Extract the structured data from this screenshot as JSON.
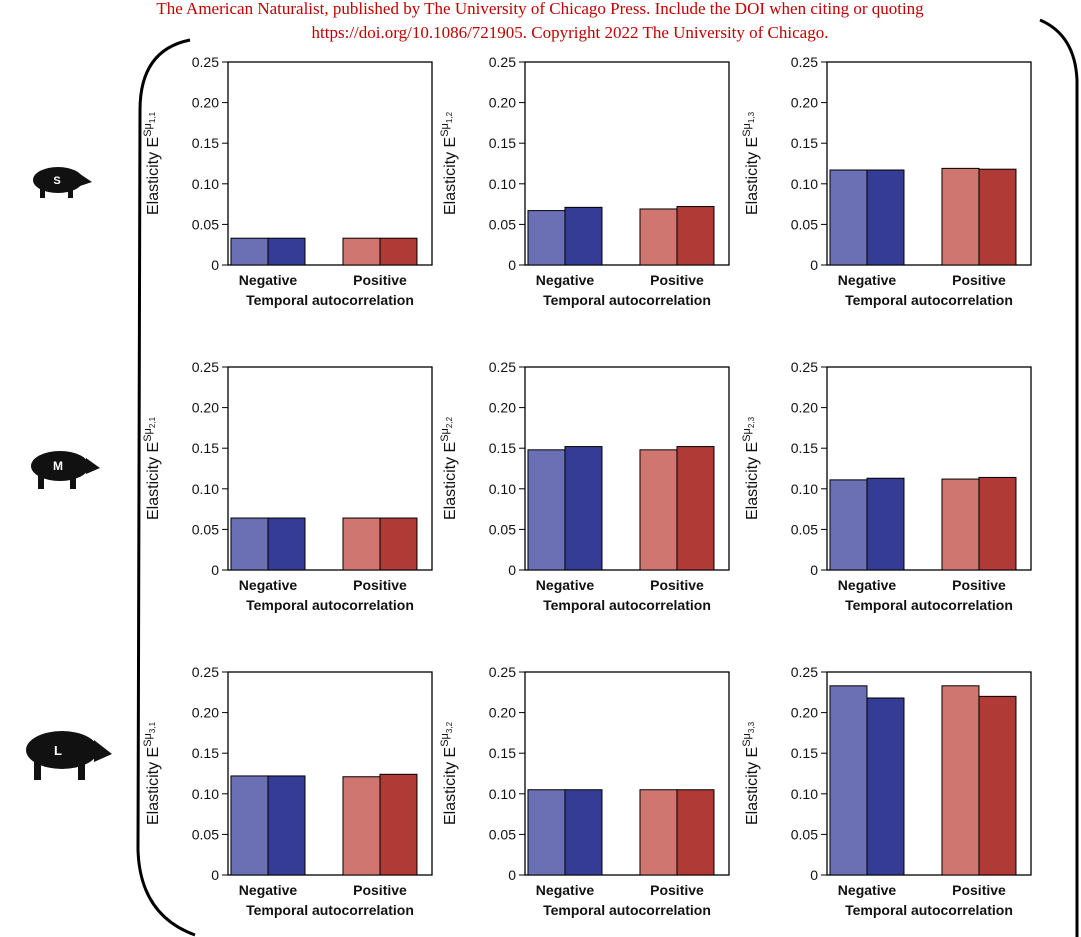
{
  "header": {
    "lines": [
      "The American Naturalist, published by The University of Chicago Press. Include the DOI when citing or quoting",
      "https://doi.org/10.1086/721905. Copyright 2022 The University of Chicago."
    ]
  },
  "row_labels": [
    "S",
    "M",
    "L"
  ],
  "chart_data": [
    {
      "type": "bar",
      "categories": [
        "Negative",
        "Positive"
      ],
      "xlabel": "Temporal autocorrelation",
      "ylabel": "Elasticity E",
      "ylabel_sup": "Sμ",
      "ylabel_sub": "1,1",
      "ylim": [
        0,
        0.25
      ],
      "yticks": [
        0,
        0.05,
        {
          "value": 0.1,
          "label": "0.10"
        },
        0.15,
        {
          "value": 0.2,
          "label": "0.20"
        },
        0.25
      ],
      "series": [
        {
          "color": [
            "#6b6fb3",
            "#cf7670"
          ],
          "values": [
            0.033,
            0.033
          ]
        },
        {
          "color": [
            "#343c96",
            "#b03a35"
          ],
          "values": [
            0.033,
            0.033
          ]
        }
      ]
    },
    {
      "type": "bar",
      "categories": [
        "Negative",
        "Positive"
      ],
      "xlabel": "Temporal autocorrelation",
      "ylabel": "Elasticity E",
      "ylabel_sup": "Sμ",
      "ylabel_sub": "1,2",
      "ylim": [
        0,
        0.25
      ],
      "yticks": [
        0,
        0.05,
        {
          "value": 0.1,
          "label": "0.10"
        },
        0.15,
        {
          "value": 0.2,
          "label": "0.20"
        },
        0.25
      ],
      "series": [
        {
          "color": [
            "#6b6fb3",
            "#cf7670"
          ],
          "values": [
            0.067,
            0.069
          ]
        },
        {
          "color": [
            "#343c96",
            "#b03a35"
          ],
          "values": [
            0.071,
            0.072
          ]
        }
      ]
    },
    {
      "type": "bar",
      "categories": [
        "Negative",
        "Positive"
      ],
      "xlabel": "Temporal autocorrelation",
      "ylabel": "Elasticity E",
      "ylabel_sup": "Sμ",
      "ylabel_sub": "1,3",
      "ylim": [
        0,
        0.25
      ],
      "yticks": [
        0,
        0.05,
        {
          "value": 0.1,
          "label": "0.10"
        },
        0.15,
        {
          "value": 0.2,
          "label": "0.20"
        },
        0.25
      ],
      "series": [
        {
          "color": [
            "#6b6fb3",
            "#cf7670"
          ],
          "values": [
            0.117,
            0.119
          ]
        },
        {
          "color": [
            "#343c96",
            "#b03a35"
          ],
          "values": [
            0.117,
            0.118
          ]
        }
      ]
    },
    {
      "type": "bar",
      "categories": [
        "Negative",
        "Positive"
      ],
      "xlabel": "Temporal autocorrelation",
      "ylabel": "Elasticity E",
      "ylabel_sup": "Sμ",
      "ylabel_sub": "2,1",
      "ylim": [
        0,
        0.25
      ],
      "yticks": [
        0,
        0.05,
        {
          "value": 0.1,
          "label": "0.10"
        },
        0.15,
        {
          "value": 0.2,
          "label": "0.20"
        },
        0.25
      ],
      "series": [
        {
          "color": [
            "#6b6fb3",
            "#cf7670"
          ],
          "values": [
            0.064,
            0.064
          ]
        },
        {
          "color": [
            "#343c96",
            "#b03a35"
          ],
          "values": [
            0.064,
            0.064
          ]
        }
      ]
    },
    {
      "type": "bar",
      "categories": [
        "Negative",
        "Positive"
      ],
      "xlabel": "Temporal autocorrelation",
      "ylabel": "Elasticity E",
      "ylabel_sup": "Sμ",
      "ylabel_sub": "2,2",
      "ylim": [
        0,
        0.25
      ],
      "yticks": [
        0,
        0.05,
        {
          "value": 0.1,
          "label": "0.10"
        },
        0.15,
        {
          "value": 0.2,
          "label": "0.20"
        },
        0.25
      ],
      "series": [
        {
          "color": [
            "#6b6fb3",
            "#cf7670"
          ],
          "values": [
            0.148,
            0.148
          ]
        },
        {
          "color": [
            "#343c96",
            "#b03a35"
          ],
          "values": [
            0.152,
            0.152
          ]
        }
      ]
    },
    {
      "type": "bar",
      "categories": [
        "Negative",
        "Positive"
      ],
      "xlabel": "Temporal autocorrelation",
      "ylabel": "Elasticity E",
      "ylabel_sup": "Sμ",
      "ylabel_sub": "2,3",
      "ylim": [
        0,
        0.25
      ],
      "yticks": [
        0,
        0.05,
        {
          "value": 0.1,
          "label": "0.10"
        },
        0.15,
        {
          "value": 0.2,
          "label": "0.20"
        },
        0.25
      ],
      "series": [
        {
          "color": [
            "#6b6fb3",
            "#cf7670"
          ],
          "values": [
            0.111,
            0.112
          ]
        },
        {
          "color": [
            "#343c96",
            "#b03a35"
          ],
          "values": [
            0.113,
            0.114
          ]
        }
      ]
    },
    {
      "type": "bar",
      "categories": [
        "Negative",
        "Positive"
      ],
      "xlabel": "Temporal autocorrelation",
      "ylabel": "Elasticity E",
      "ylabel_sup": "Sμ",
      "ylabel_sub": "3,1",
      "ylim": [
        0,
        0.25
      ],
      "yticks": [
        0,
        0.05,
        {
          "value": 0.1,
          "label": "0.10"
        },
        0.15,
        {
          "value": 0.2,
          "label": "0.20"
        },
        0.25
      ],
      "series": [
        {
          "color": [
            "#6b6fb3",
            "#cf7670"
          ],
          "values": [
            0.122,
            0.121
          ]
        },
        {
          "color": [
            "#343c96",
            "#b03a35"
          ],
          "values": [
            0.122,
            0.124
          ]
        }
      ]
    },
    {
      "type": "bar",
      "categories": [
        "Negative",
        "Positive"
      ],
      "xlabel": "Temporal autocorrelation",
      "ylabel": "Elasticity E",
      "ylabel_sup": "Sμ",
      "ylabel_sub": "3,2",
      "ylim": [
        0,
        0.25
      ],
      "yticks": [
        0,
        0.05,
        {
          "value": 0.1,
          "label": "0.10"
        },
        0.15,
        {
          "value": 0.2,
          "label": "0.20"
        },
        0.25
      ],
      "series": [
        {
          "color": [
            "#6b6fb3",
            "#cf7670"
          ],
          "values": [
            0.105,
            0.105
          ]
        },
        {
          "color": [
            "#343c96",
            "#b03a35"
          ],
          "values": [
            0.105,
            0.105
          ]
        }
      ]
    },
    {
      "type": "bar",
      "categories": [
        "Negative",
        "Positive"
      ],
      "xlabel": "Temporal autocorrelation",
      "ylabel": "Elasticity E",
      "ylabel_sup": "Sμ",
      "ylabel_sub": "3,3",
      "ylim": [
        0,
        0.25
      ],
      "yticks": [
        0,
        0.05,
        {
          "value": 0.1,
          "label": "0.10"
        },
        0.15,
        {
          "value": 0.2,
          "label": "0.20"
        },
        0.25
      ],
      "series": [
        {
          "color": [
            "#6b6fb3",
            "#cf7670"
          ],
          "values": [
            0.233,
            0.233
          ]
        },
        {
          "color": [
            "#343c96",
            "#b03a35"
          ],
          "values": [
            0.218,
            0.22
          ]
        }
      ]
    }
  ]
}
